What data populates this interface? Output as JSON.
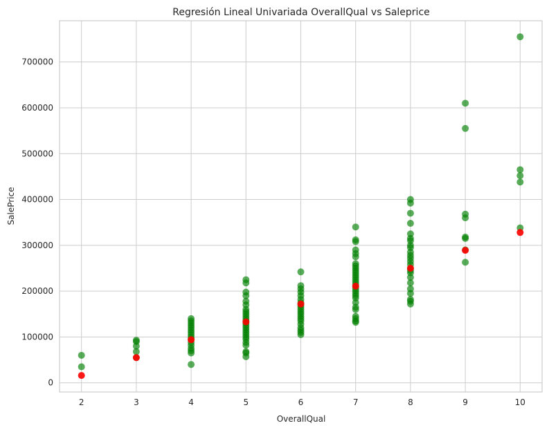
{
  "chart_data": {
    "type": "scatter",
    "title": "Regresión Lineal Univariada OverallQual vs Saleprice",
    "xlabel": "OverallQual",
    "ylabel": "SalePrice",
    "xlim": [
      1.6,
      10.4
    ],
    "ylim": [
      -20000,
      790000
    ],
    "x_ticks": [
      2,
      3,
      4,
      5,
      6,
      7,
      8,
      9,
      10
    ],
    "y_ticks": [
      0,
      100000,
      200000,
      300000,
      400000,
      500000,
      600000,
      700000
    ],
    "grid": true,
    "series": [
      {
        "color": "#008000",
        "points": [
          [
            2,
            60000
          ],
          [
            2,
            35000
          ],
          [
            3,
            93000
          ],
          [
            3,
            90000
          ],
          [
            3,
            80000
          ],
          [
            3,
            68000
          ],
          [
            3,
            55000
          ],
          [
            4,
            140000
          ],
          [
            4,
            135000
          ],
          [
            4,
            130000
          ],
          [
            4,
            125000
          ],
          [
            4,
            120000
          ],
          [
            4,
            115000
          ],
          [
            4,
            110000
          ],
          [
            4,
            105000
          ],
          [
            4,
            100000
          ],
          [
            4,
            95000
          ],
          [
            4,
            88000
          ],
          [
            4,
            82000
          ],
          [
            4,
            75000
          ],
          [
            4,
            70000
          ],
          [
            4,
            65000
          ],
          [
            4,
            40000
          ],
          [
            5,
            225000
          ],
          [
            5,
            218000
          ],
          [
            5,
            198000
          ],
          [
            5,
            190000
          ],
          [
            5,
            178000
          ],
          [
            5,
            170000
          ],
          [
            5,
            160000
          ],
          [
            5,
            155000
          ],
          [
            5,
            150000
          ],
          [
            5,
            145000
          ],
          [
            5,
            140000
          ],
          [
            5,
            135000
          ],
          [
            5,
            130000
          ],
          [
            5,
            125000
          ],
          [
            5,
            120000
          ],
          [
            5,
            115000
          ],
          [
            5,
            110000
          ],
          [
            5,
            105000
          ],
          [
            5,
            100000
          ],
          [
            5,
            95000
          ],
          [
            5,
            88000
          ],
          [
            5,
            82000
          ],
          [
            5,
            68000
          ],
          [
            5,
            65000
          ],
          [
            5,
            57000
          ],
          [
            6,
            242000
          ],
          [
            6,
            212000
          ],
          [
            6,
            205000
          ],
          [
            6,
            198000
          ],
          [
            6,
            190000
          ],
          [
            6,
            182000
          ],
          [
            6,
            175000
          ],
          [
            6,
            170000
          ],
          [
            6,
            165000
          ],
          [
            6,
            160000
          ],
          [
            6,
            155000
          ],
          [
            6,
            150000
          ],
          [
            6,
            145000
          ],
          [
            6,
            140000
          ],
          [
            6,
            135000
          ],
          [
            6,
            128000
          ],
          [
            6,
            120000
          ],
          [
            6,
            115000
          ],
          [
            6,
            110000
          ],
          [
            6,
            105000
          ],
          [
            7,
            340000
          ],
          [
            7,
            312000
          ],
          [
            7,
            308000
          ],
          [
            7,
            290000
          ],
          [
            7,
            282000
          ],
          [
            7,
            275000
          ],
          [
            7,
            260000
          ],
          [
            7,
            255000
          ],
          [
            7,
            250000
          ],
          [
            7,
            245000
          ],
          [
            7,
            240000
          ],
          [
            7,
            235000
          ],
          [
            7,
            230000
          ],
          [
            7,
            225000
          ],
          [
            7,
            220000
          ],
          [
            7,
            215000
          ],
          [
            7,
            210000
          ],
          [
            7,
            205000
          ],
          [
            7,
            200000
          ],
          [
            7,
            195000
          ],
          [
            7,
            190000
          ],
          [
            7,
            185000
          ],
          [
            7,
            175000
          ],
          [
            7,
            165000
          ],
          [
            7,
            160000
          ],
          [
            7,
            145000
          ],
          [
            7,
            140000
          ],
          [
            7,
            135000
          ],
          [
            7,
            132000
          ],
          [
            8,
            400000
          ],
          [
            8,
            392000
          ],
          [
            8,
            370000
          ],
          [
            8,
            348000
          ],
          [
            8,
            325000
          ],
          [
            8,
            315000
          ],
          [
            8,
            310000
          ],
          [
            8,
            300000
          ],
          [
            8,
            295000
          ],
          [
            8,
            285000
          ],
          [
            8,
            278000
          ],
          [
            8,
            272000
          ],
          [
            8,
            265000
          ],
          [
            8,
            258000
          ],
          [
            8,
            250000
          ],
          [
            8,
            245000
          ],
          [
            8,
            240000
          ],
          [
            8,
            230000
          ],
          [
            8,
            218000
          ],
          [
            8,
            205000
          ],
          [
            8,
            195000
          ],
          [
            8,
            182000
          ],
          [
            8,
            178000
          ],
          [
            8,
            172000
          ],
          [
            9,
            610000
          ],
          [
            9,
            555000
          ],
          [
            9,
            368000
          ],
          [
            9,
            360000
          ],
          [
            9,
            318000
          ],
          [
            9,
            315000
          ],
          [
            9,
            290000
          ],
          [
            9,
            263000
          ],
          [
            10,
            755000
          ],
          [
            10,
            465000
          ],
          [
            10,
            452000
          ],
          [
            10,
            438000
          ],
          [
            10,
            338000
          ]
        ]
      },
      {
        "color": "#ff0000",
        "points": [
          [
            2,
            16000
          ],
          [
            3,
            55000
          ],
          [
            4,
            94000
          ],
          [
            5,
            133000
          ],
          [
            6,
            172000
          ],
          [
            7,
            211000
          ],
          [
            8,
            250000
          ],
          [
            9,
            289000
          ],
          [
            10,
            328000
          ]
        ]
      }
    ]
  }
}
